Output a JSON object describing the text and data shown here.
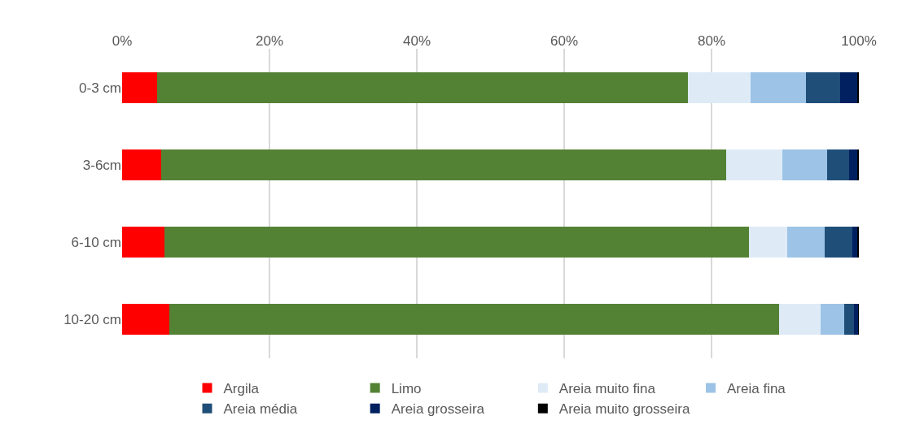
{
  "chart_data": {
    "type": "bar",
    "orientation": "horizontal",
    "stacked": true,
    "categories": [
      "0-3 cm",
      "3-6cm",
      "6-10 cm",
      "10-20 cm"
    ],
    "series": [
      {
        "name": "Argila",
        "color": "#ff0000",
        "values": [
          4.8,
          5.3,
          5.8,
          6.4
        ]
      },
      {
        "name": "Limo",
        "color": "#548235",
        "values": [
          72.0,
          76.7,
          79.3,
          82.8
        ]
      },
      {
        "name": "Areia muito fina",
        "color": "#deebf7",
        "values": [
          8.5,
          7.6,
          5.2,
          5.6
        ]
      },
      {
        "name": "Areia fina",
        "color": "#9dc3e6",
        "values": [
          7.5,
          6.1,
          5.1,
          3.2
        ]
      },
      {
        "name": "Areia média",
        "color": "#1f4e79",
        "values": [
          4.7,
          3.0,
          3.7,
          1.3
        ]
      },
      {
        "name": "Areia grosseira",
        "color": "#002060",
        "values": [
          2.3,
          1.1,
          0.7,
          0.6
        ]
      },
      {
        "name": "Areia muito grosseira",
        "color": "#000000",
        "values": [
          0.2,
          0.2,
          0.2,
          0.1
        ]
      }
    ],
    "xlim": [
      0,
      100
    ],
    "xticks": [
      {
        "value": 0,
        "label": "0%"
      },
      {
        "value": 20,
        "label": "20%"
      },
      {
        "value": 40,
        "label": "40%"
      },
      {
        "value": 60,
        "label": "60%"
      },
      {
        "value": 80,
        "label": "80%"
      },
      {
        "value": 100,
        "label": "100%"
      }
    ],
    "grid": "x",
    "legend": "bottom"
  }
}
